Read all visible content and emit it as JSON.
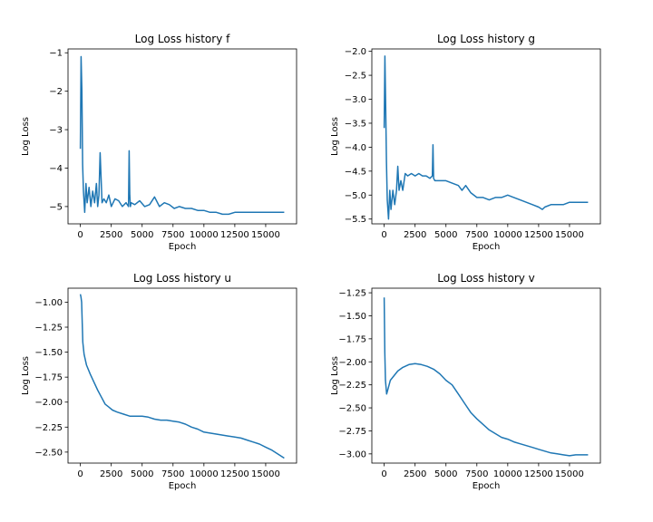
{
  "chart_data": [
    {
      "type": "line",
      "title": "Log Loss history f",
      "xlabel": "Epoch",
      "ylabel": "Log Loss",
      "xlim": [
        -1000,
        17500
      ],
      "ylim": [
        -5.45,
        -0.9
      ],
      "x_ticks": [
        0,
        2500,
        5000,
        7500,
        10000,
        12500,
        15000
      ],
      "x_tick_labels": [
        "0",
        "2500",
        "5000",
        "7500",
        "10000",
        "12500",
        "15000"
      ],
      "y_ticks": [
        -5,
        -4,
        -3,
        -2,
        -1
      ],
      "y_tick_labels": [
        "−5",
        "−4",
        "−3",
        "−2",
        "−1"
      ],
      "color": "#1f77b4",
      "series": [
        {
          "x": [
            0,
            60,
            120,
            180,
            250,
            350,
            450,
            550,
            700,
            850,
            1000,
            1150,
            1300,
            1400,
            1500,
            1600,
            1750,
            1900,
            2100,
            2300,
            2500,
            2800,
            3100,
            3400,
            3700,
            3900,
            3950,
            4000,
            4050,
            4100,
            4400,
            4800,
            5200,
            5600,
            6000,
            6400,
            6800,
            7200,
            7600,
            8000,
            8500,
            9000,
            9500,
            10000,
            10500,
            11000,
            11500,
            12000,
            12500,
            13000,
            13500,
            14000,
            14500,
            15000,
            15500,
            16000,
            16500
          ],
          "y": [
            -3.5,
            -1.1,
            -2.0,
            -3.9,
            -4.6,
            -5.15,
            -4.4,
            -4.9,
            -4.5,
            -5.0,
            -4.6,
            -4.9,
            -4.4,
            -5.0,
            -4.7,
            -3.6,
            -4.9,
            -4.8,
            -4.9,
            -4.7,
            -5.0,
            -4.8,
            -4.85,
            -5.0,
            -4.9,
            -5.0,
            -3.55,
            -4.7,
            -5.0,
            -4.9,
            -4.95,
            -4.85,
            -5.0,
            -4.95,
            -4.75,
            -5.0,
            -4.9,
            -4.95,
            -5.05,
            -5.0,
            -5.05,
            -5.05,
            -5.1,
            -5.1,
            -5.15,
            -5.15,
            -5.2,
            -5.2,
            -5.15,
            -5.15,
            -5.15,
            -5.15,
            -5.15,
            -5.15,
            -5.15,
            -5.15,
            -5.15
          ]
        }
      ]
    },
    {
      "type": "line",
      "title": "Log Loss history g",
      "xlabel": "Epoch",
      "ylabel": "Log Loss",
      "xlim": [
        -1000,
        17500
      ],
      "ylim": [
        -5.6,
        -1.95
      ],
      "x_ticks": [
        0,
        2500,
        5000,
        7500,
        10000,
        12500,
        15000
      ],
      "x_tick_labels": [
        "0",
        "2500",
        "5000",
        "7500",
        "10000",
        "12500",
        "15000"
      ],
      "y_ticks": [
        -5.5,
        -5.0,
        -4.5,
        -4.0,
        -3.5,
        -3.0,
        -2.5,
        -2.0
      ],
      "y_tick_labels": [
        "−5.5",
        "−5.0",
        "−4.5",
        "−4.0",
        "−3.5",
        "−3.0",
        "−2.5",
        "−2.0"
      ],
      "color": "#1f77b4",
      "series": [
        {
          "x": [
            0,
            60,
            120,
            180,
            250,
            350,
            450,
            550,
            700,
            850,
            1000,
            1100,
            1200,
            1350,
            1500,
            1700,
            1900,
            2200,
            2500,
            2800,
            3100,
            3400,
            3700,
            3900,
            3950,
            4000,
            4100,
            4500,
            5000,
            5500,
            6000,
            6300,
            6600,
            7000,
            7500,
            8000,
            8500,
            9000,
            9500,
            10000,
            10500,
            11000,
            11500,
            12000,
            12500,
            12800,
            13000,
            13500,
            14000,
            14500,
            15000,
            15500,
            16000,
            16500
          ],
          "y": [
            -3.6,
            -2.1,
            -3.2,
            -4.3,
            -5.1,
            -5.5,
            -4.9,
            -5.3,
            -4.9,
            -5.2,
            -4.9,
            -4.4,
            -4.9,
            -4.7,
            -4.9,
            -4.55,
            -4.6,
            -4.55,
            -4.6,
            -4.55,
            -4.6,
            -4.6,
            -4.65,
            -4.6,
            -3.95,
            -4.65,
            -4.7,
            -4.7,
            -4.7,
            -4.75,
            -4.8,
            -4.9,
            -4.8,
            -4.95,
            -5.05,
            -5.05,
            -5.1,
            -5.05,
            -5.05,
            -5.0,
            -5.05,
            -5.1,
            -5.15,
            -5.2,
            -5.25,
            -5.3,
            -5.25,
            -5.2,
            -5.2,
            -5.2,
            -5.15,
            -5.15,
            -5.15,
            -5.15
          ]
        }
      ]
    },
    {
      "type": "line",
      "title": "Log Loss history u",
      "xlabel": "Epoch",
      "ylabel": "Log Loss",
      "xlim": [
        -1000,
        17500
      ],
      "ylim": [
        -2.61,
        -0.86
      ],
      "x_ticks": [
        0,
        2500,
        5000,
        7500,
        10000,
        12500,
        15000
      ],
      "x_tick_labels": [
        "0",
        "2500",
        "5000",
        "7500",
        "10000",
        "12500",
        "15000"
      ],
      "y_ticks": [
        -2.5,
        -2.25,
        -2.0,
        -1.75,
        -1.5,
        -1.25,
        -1.0
      ],
      "y_tick_labels": [
        "−2.50",
        "−2.25",
        "−2.00",
        "−1.75",
        "−1.50",
        "−1.25",
        "−1.00"
      ],
      "color": "#1f77b4",
      "series": [
        {
          "x": [
            0,
            50,
            100,
            200,
            300,
            500,
            800,
            1100,
            1400,
            1700,
            2000,
            2300,
            2600,
            3000,
            3500,
            4000,
            4500,
            5000,
            5500,
            6000,
            6500,
            7000,
            7500,
            8000,
            8500,
            9000,
            9500,
            10000,
            10500,
            11000,
            11500,
            12000,
            12500,
            13000,
            13500,
            14000,
            14500,
            15000,
            15500,
            16000,
            16500
          ],
          "y": [
            -0.92,
            -0.95,
            -1.0,
            -1.4,
            -1.52,
            -1.63,
            -1.72,
            -1.8,
            -1.88,
            -1.95,
            -2.02,
            -2.05,
            -2.08,
            -2.1,
            -2.12,
            -2.14,
            -2.14,
            -2.14,
            -2.15,
            -2.17,
            -2.18,
            -2.18,
            -2.19,
            -2.2,
            -2.22,
            -2.25,
            -2.27,
            -2.3,
            -2.31,
            -2.32,
            -2.33,
            -2.34,
            -2.35,
            -2.36,
            -2.38,
            -2.4,
            -2.42,
            -2.45,
            -2.48,
            -2.52,
            -2.56
          ]
        }
      ]
    },
    {
      "type": "line",
      "title": "Log Loss history v",
      "xlabel": "Epoch",
      "ylabel": "Log Loss",
      "xlim": [
        -1000,
        17500
      ],
      "ylim": [
        -3.1,
        -1.2
      ],
      "x_ticks": [
        0,
        2500,
        5000,
        7500,
        10000,
        12500,
        15000
      ],
      "x_tick_labels": [
        "0",
        "2500",
        "5000",
        "7500",
        "10000",
        "12500",
        "15000"
      ],
      "y_ticks": [
        -3.0,
        -2.75,
        -2.5,
        -2.25,
        -2.0,
        -1.75,
        -1.5,
        -1.25
      ],
      "y_tick_labels": [
        "−3.00",
        "−2.75",
        "−2.50",
        "−2.25",
        "−2.00",
        "−1.75",
        "−1.50",
        "−1.25"
      ],
      "color": "#1f77b4",
      "series": [
        {
          "x": [
            0,
            50,
            100,
            200,
            300,
            500,
            800,
            1100,
            1500,
            2000,
            2500,
            3000,
            3500,
            4000,
            4500,
            5000,
            5500,
            6000,
            6500,
            7000,
            7500,
            8000,
            8500,
            9000,
            9500,
            10000,
            10500,
            11000,
            11500,
            12000,
            12500,
            13000,
            13500,
            14000,
            14500,
            15000,
            15500,
            16000,
            16500
          ],
          "y": [
            -1.3,
            -1.9,
            -2.2,
            -2.35,
            -2.3,
            -2.2,
            -2.15,
            -2.1,
            -2.06,
            -2.03,
            -2.02,
            -2.03,
            -2.05,
            -2.08,
            -2.13,
            -2.2,
            -2.25,
            -2.35,
            -2.45,
            -2.55,
            -2.62,
            -2.68,
            -2.74,
            -2.78,
            -2.82,
            -2.84,
            -2.87,
            -2.89,
            -2.91,
            -2.93,
            -2.95,
            -2.97,
            -2.99,
            -3.0,
            -3.01,
            -3.02,
            -3.01,
            -3.01,
            -3.01
          ]
        }
      ]
    }
  ]
}
